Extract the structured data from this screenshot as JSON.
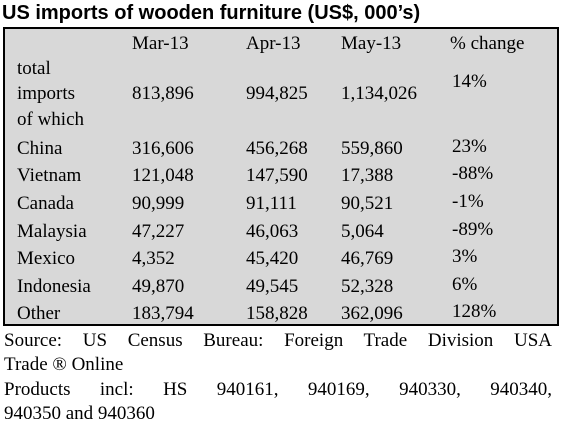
{
  "title": "US imports of wooden furniture (US$, 000’s)",
  "table": {
    "headers": [
      "Mar-13",
      "Apr-13",
      "May-13",
      "% change"
    ],
    "total_label_lines": [
      "total",
      "imports",
      "of which"
    ],
    "total": {
      "mar": "813,896",
      "apr": "994,825",
      "may": "1,134,026",
      "change": "14%"
    },
    "rows": [
      {
        "country": "China",
        "mar": "316,606",
        "apr": "456,268",
        "may": "559,860",
        "change": "23%"
      },
      {
        "country": "Vietnam",
        "mar": "121,048",
        "apr": "147,590",
        "may": "17,388",
        "change": "-88%"
      },
      {
        "country": "Canada",
        "mar": "90,999",
        "apr": "91,111",
        "may": "90,521",
        "change": "-1%"
      },
      {
        "country": "Malaysia",
        "mar": "47,227",
        "apr": "46,063",
        "may": "5,064",
        "change": "-89%"
      },
      {
        "country": "Mexico",
        "mar": "4,352",
        "apr": "45,420",
        "may": "46,769",
        "change": "3%"
      },
      {
        "country": "Indonesia",
        "mar": "49,870",
        "apr": "49,545",
        "may": "52,328",
        "change": "6%"
      },
      {
        "country": "Other",
        "mar": "183,794",
        "apr": "158,828",
        "may": "362,096",
        "change": "128%"
      }
    ]
  },
  "source": {
    "line1": "Source: US Census Bureau: Foreign Trade Division USA",
    "line2": "Trade ® Online"
  },
  "products": {
    "line1": "Products incl: HS 940161, 940169, 940330, 940340,",
    "line2": "940350 and 940360"
  }
}
